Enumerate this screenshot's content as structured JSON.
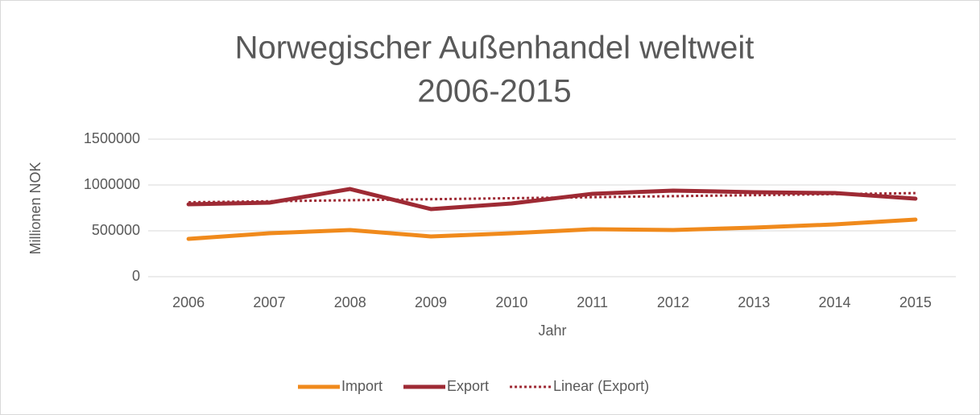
{
  "chart_data": {
    "type": "line",
    "title": [
      "Norwegischer Außenhandel weltweit",
      "2006-2015"
    ],
    "x_label": "Jahr",
    "y_label": "Millionen NOK",
    "categories": [
      "2006",
      "2007",
      "2008",
      "2009",
      "2010",
      "2011",
      "2012",
      "2013",
      "2014",
      "2015"
    ],
    "series": [
      {
        "name": "Import",
        "color": "#f08a1c",
        "values": [
          412000,
          474000,
          509000,
          439000,
          474000,
          518000,
          509000,
          535000,
          570000,
          623000
        ]
      },
      {
        "name": "Export",
        "color": "#9e2a34",
        "values": [
          789000,
          807000,
          956000,
          737000,
          798000,
          904000,
          939000,
          921000,
          912000,
          851000
        ]
      }
    ],
    "trendline": {
      "name": "Linear (Export)",
      "of_series": 1,
      "color": "#9e2a34",
      "dash": "dotted"
    },
    "ylim": [
      0,
      1500000
    ],
    "yticks": [
      0,
      500000,
      1000000,
      1500000
    ],
    "grid": true,
    "legend": "bottom"
  }
}
